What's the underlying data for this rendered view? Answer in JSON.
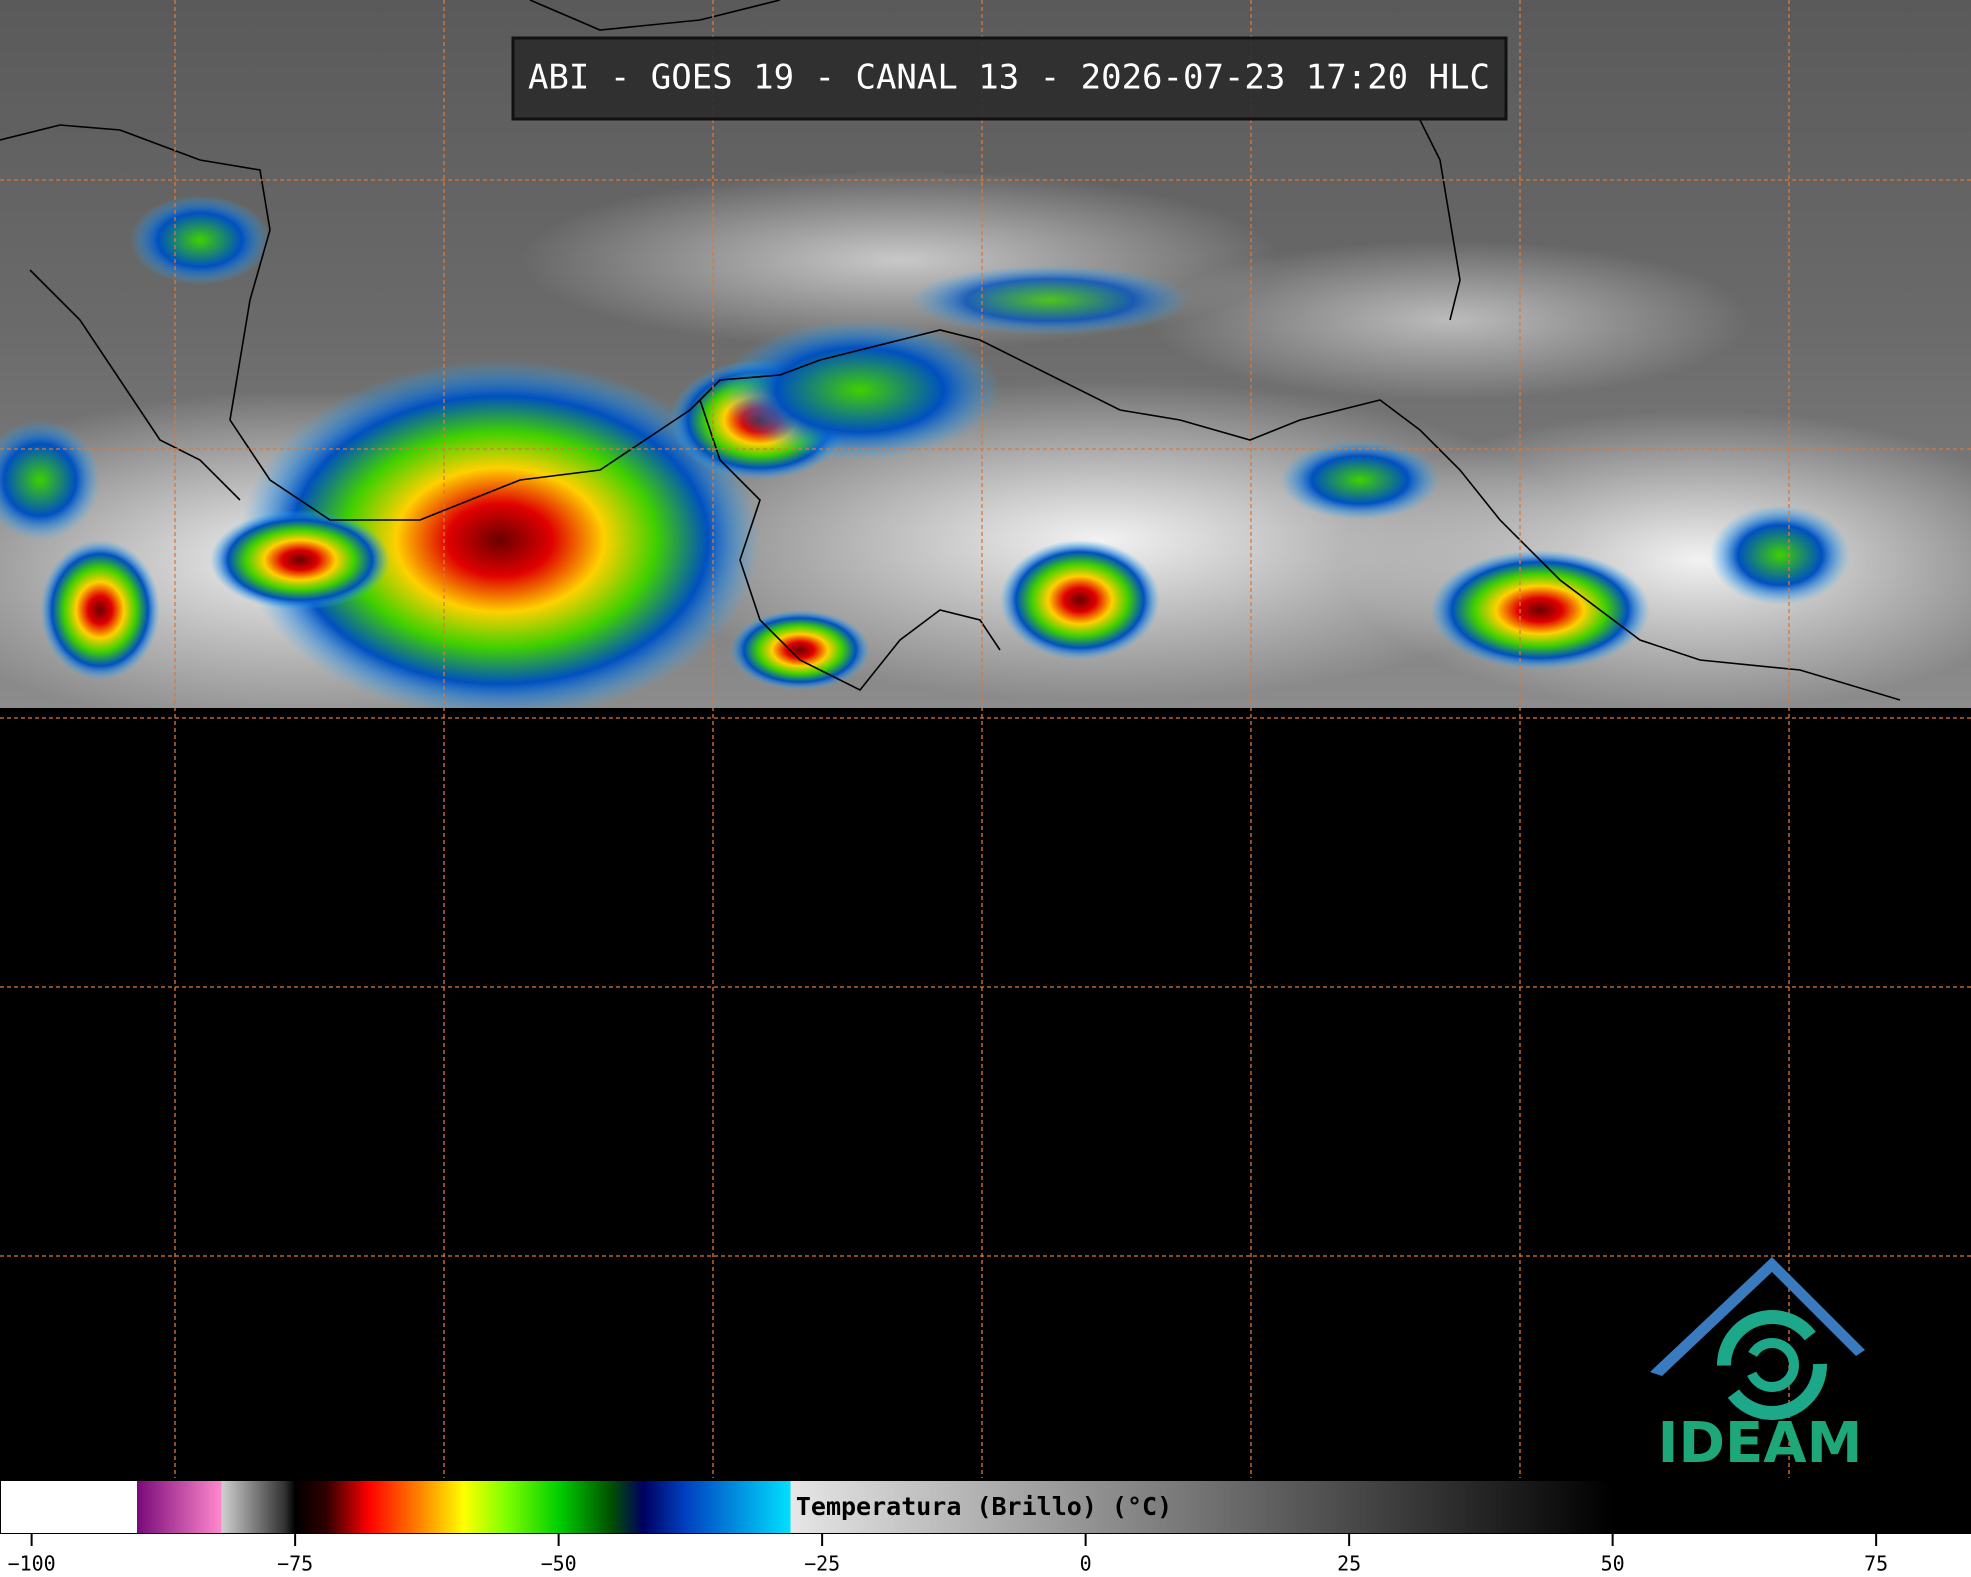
{
  "header": {
    "title": "ABI - GOES 19 - CANAL 13 - 2026-07-23 17:20 HLC"
  },
  "colorbar": {
    "label": "Temperatura (Brillo) (°C)",
    "lim": [
      -103,
      84
    ],
    "ticks": [
      {
        "value": -100,
        "label": "−100"
      },
      {
        "value": -75,
        "label": "−75"
      },
      {
        "value": -50,
        "label": "−50"
      },
      {
        "value": -25,
        "label": "−25"
      },
      0,
      25,
      50,
      75
    ],
    "stops": [
      [
        -103,
        "#ffffff"
      ],
      [
        -90,
        "#ffffff"
      ],
      [
        -90,
        "#7a0a7a"
      ],
      [
        -82,
        "#ff88cc"
      ],
      [
        -82,
        "#d0d0d0"
      ],
      [
        -76,
        "#333333"
      ],
      [
        -75,
        "#000000"
      ],
      [
        -72,
        "#300000"
      ],
      [
        -68,
        "#ff0000"
      ],
      [
        -63,
        "#ff8800"
      ],
      [
        -59,
        "#ffff00"
      ],
      [
        -55,
        "#80ff00"
      ],
      [
        -50,
        "#00d000"
      ],
      [
        -45,
        "#005000"
      ],
      [
        -42,
        "#000060"
      ],
      [
        -38,
        "#0040c0"
      ],
      [
        -28,
        "#00e0ff"
      ],
      [
        -28,
        "#e6e6e6"
      ],
      [
        50,
        "#000000"
      ],
      [
        84,
        "#000000"
      ]
    ]
  },
  "logo": {
    "text": "IDEAM"
  }
}
